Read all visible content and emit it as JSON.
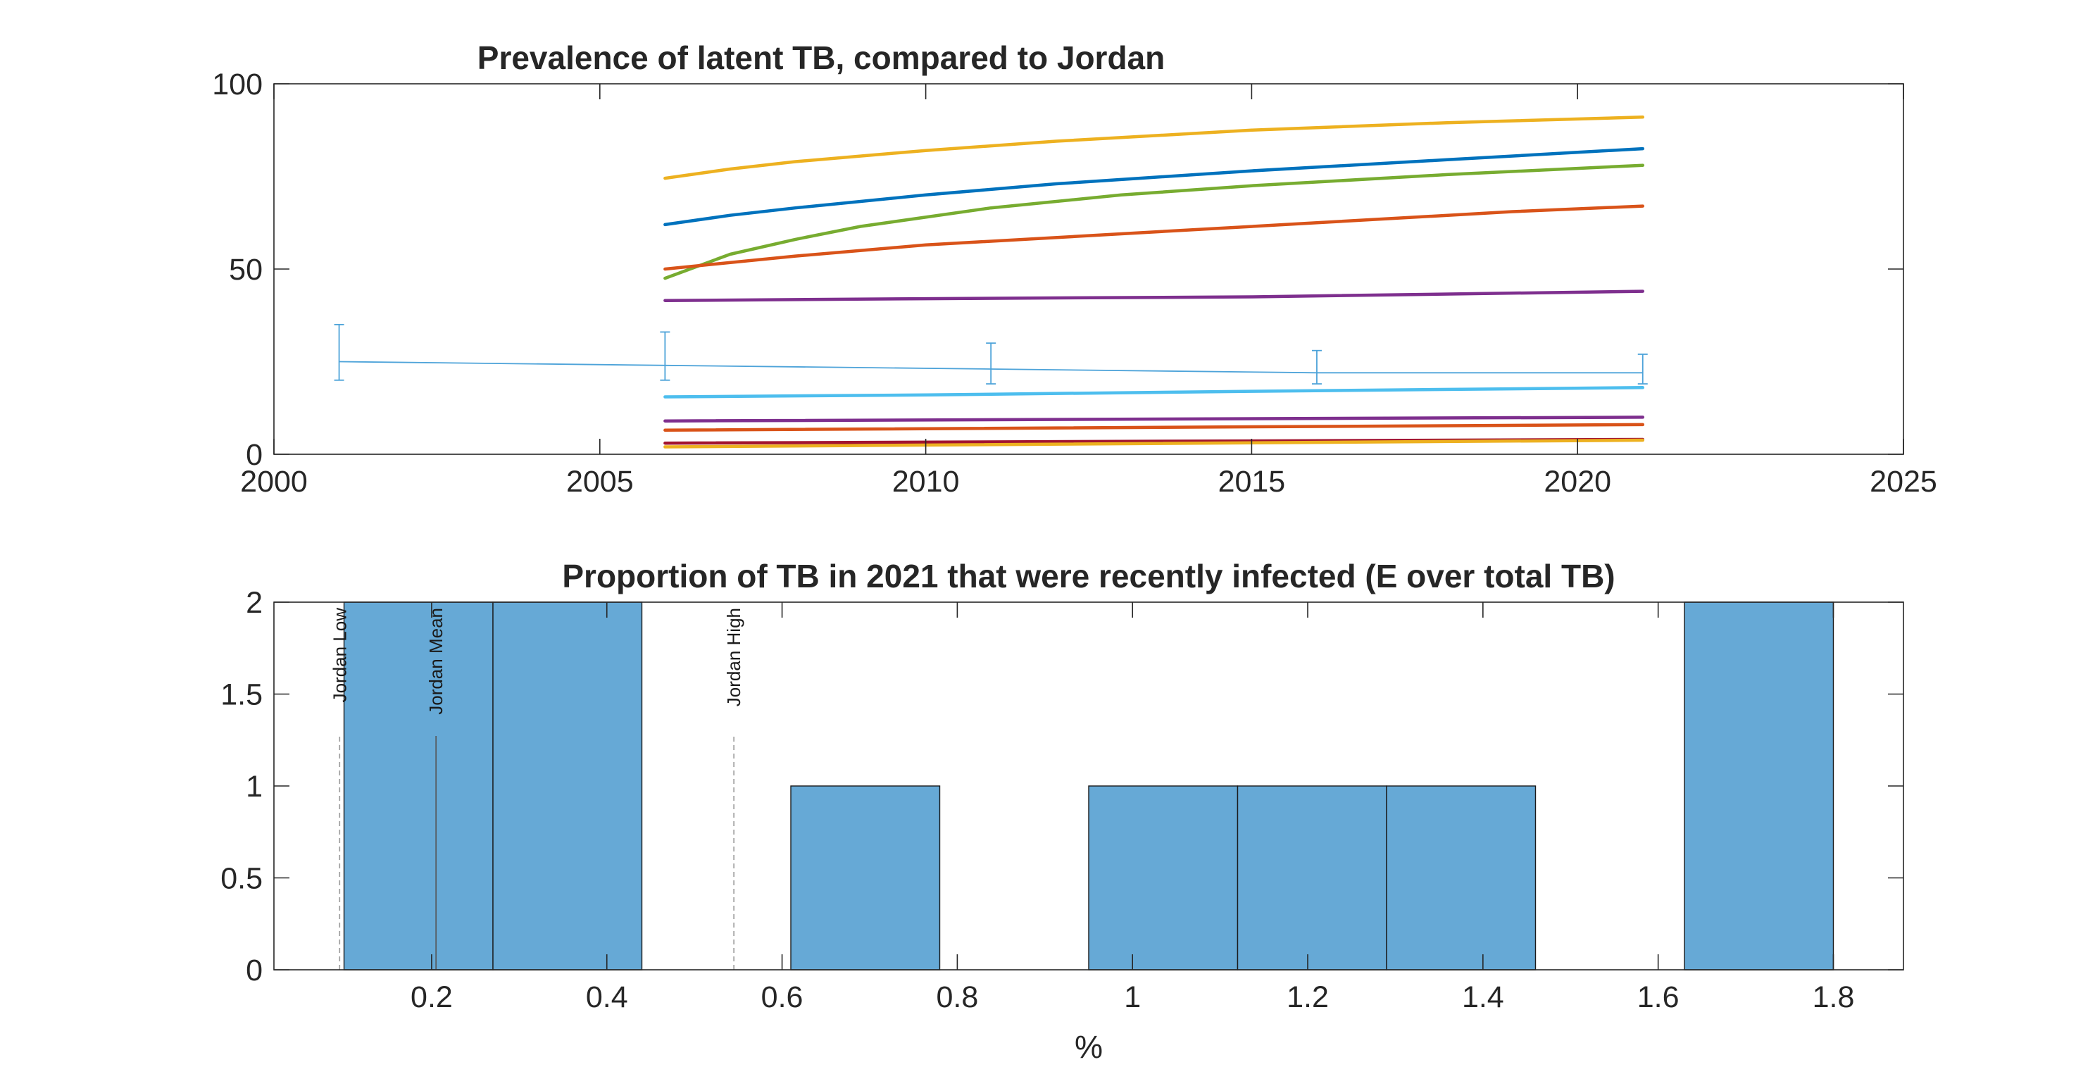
{
  "chart_data": [
    {
      "type": "line",
      "title": "Prevalence of latent TB, compared to Jordan",
      "xlabel": "",
      "ylabel": "",
      "xlim": [
        2000,
        2025
      ],
      "ylim": [
        0,
        100
      ],
      "xticks": [
        "2000",
        "2005",
        "2010",
        "2015",
        "2020",
        "2025"
      ],
      "yticks": [
        "0",
        "50",
        "100"
      ],
      "grid": false,
      "legend": "none",
      "series": [
        {
          "color": "#EDB120",
          "x": [
            2006,
            2007,
            2008,
            2010,
            2012,
            2015,
            2018,
            2021
          ],
          "y": [
            74.5,
            77,
            79,
            82,
            84.5,
            87.5,
            89.5,
            91
          ]
        },
        {
          "color": "#0072BD",
          "x": [
            2006,
            2007,
            2008,
            2010,
            2012,
            2015,
            2018,
            2020,
            2021
          ],
          "y": [
            62,
            64.5,
            66.5,
            70,
            73,
            76.5,
            79.5,
            81.5,
            82.5
          ]
        },
        {
          "color": "#77AC30",
          "x": [
            2006,
            2007,
            2008,
            2009,
            2011,
            2013,
            2015,
            2018,
            2021
          ],
          "y": [
            47.5,
            54,
            58,
            61.5,
            66.5,
            70,
            72.5,
            75.5,
            78
          ]
        },
        {
          "color": "#D95319",
          "x": [
            2006,
            2008,
            2010,
            2013,
            2016,
            2019,
            2021
          ],
          "y": [
            50,
            53.5,
            56.5,
            59.5,
            62.5,
            65.5,
            67
          ]
        },
        {
          "color": "#7E2F8E",
          "x": [
            2006,
            2010,
            2015,
            2021
          ],
          "y": [
            41.5,
            42,
            42.5,
            44
          ]
        },
        {
          "color": "#4DBEEE",
          "x": [
            2006,
            2010,
            2015,
            2021
          ],
          "y": [
            15.5,
            16,
            17,
            18
          ]
        },
        {
          "color": "#7E2F8E",
          "x": [
            2006,
            2021
          ],
          "y": [
            9,
            10
          ]
        },
        {
          "color": "#D95319",
          "x": [
            2006,
            2021
          ],
          "y": [
            6.5,
            8
          ]
        },
        {
          "color": "#A2142F",
          "x": [
            2006,
            2021
          ],
          "y": [
            3,
            4
          ]
        },
        {
          "color": "#EDB120",
          "x": [
            2006,
            2021
          ],
          "y": [
            2,
            3.8
          ]
        }
      ],
      "reference": {
        "color": "#4DA3D9",
        "x": [
          2001,
          2006,
          2011,
          2016,
          2021
        ],
        "y": [
          25,
          24,
          23,
          22,
          22
        ],
        "lower": [
          20,
          20,
          19,
          19,
          19
        ],
        "upper": [
          35,
          33,
          30,
          28,
          27
        ]
      }
    },
    {
      "type": "bar",
      "title": "Proportion of TB in 2021 that were recently infected (E over total TB)",
      "xlabel": "%",
      "ylabel": "",
      "xlim": [
        0.02,
        1.88
      ],
      "ylim": [
        0,
        2
      ],
      "xticks": [
        "0.2",
        "0.4",
        "0.6",
        "0.8",
        "1",
        "1.2",
        "1.4",
        "1.6",
        "1.8"
      ],
      "yticks": [
        "0",
        "0.5",
        "1",
        "1.5",
        "2"
      ],
      "grid": false,
      "legend": "none",
      "bar_color": "#66A9D6",
      "bin_edges": [
        0.1,
        0.27,
        0.44,
        0.61,
        0.78,
        0.95,
        1.12,
        1.29,
        1.46,
        1.63,
        1.8
      ],
      "counts": [
        2,
        2,
        0,
        1,
        0,
        1,
        1,
        1,
        0,
        2
      ],
      "reference_lines": [
        {
          "label": "Jordan Low",
          "x": 0.095,
          "style": "dashed"
        },
        {
          "label": "Jordan Mean",
          "x": 0.205,
          "style": "solid"
        },
        {
          "label": "Jordan High",
          "x": 0.545,
          "style": "dashed"
        }
      ]
    }
  ]
}
